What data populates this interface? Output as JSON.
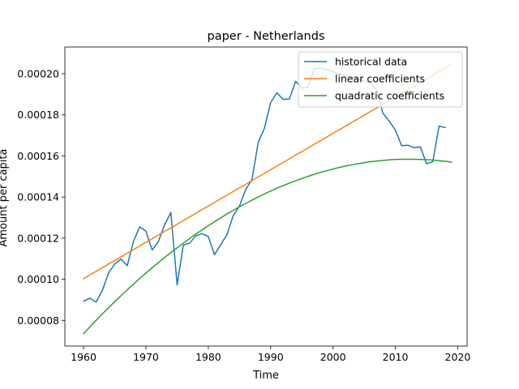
{
  "chart_data": {
    "type": "line",
    "title": "paper - Netherlands",
    "xlabel": "Time",
    "ylabel": "Amount per capita",
    "xlim": [
      1957,
      2021.5
    ],
    "ylim": [
      6.75e-05,
      0.000213
    ],
    "x_ticks": [
      1960,
      1970,
      1980,
      1990,
      2000,
      2010,
      2020
    ],
    "x_tick_labels": [
      "1960",
      "1970",
      "1980",
      "1990",
      "2000",
      "2010",
      "2020"
    ],
    "y_ticks": [
      8e-05,
      0.0001,
      0.00012,
      0.00014,
      0.00016,
      0.00018,
      0.0002
    ],
    "y_tick_labels": [
      "0.00008",
      "0.00010",
      "0.00012",
      "0.00014",
      "0.00016",
      "0.00018",
      "0.00020"
    ],
    "legend_position": "top-right",
    "grid": false,
    "x": [
      1960,
      1961,
      1962,
      1963,
      1964,
      1965,
      1966,
      1967,
      1968,
      1969,
      1970,
      1971,
      1972,
      1973,
      1974,
      1975,
      1976,
      1977,
      1978,
      1979,
      1980,
      1981,
      1982,
      1983,
      1984,
      1985,
      1986,
      1987,
      1988,
      1989,
      1990,
      1991,
      1992,
      1993,
      1994,
      1995,
      1996,
      1997,
      1998,
      1999,
      2000,
      2001,
      2002,
      2003,
      2004,
      2005,
      2006,
      2007,
      2008,
      2009,
      2010,
      2011,
      2012,
      2013,
      2014,
      2015,
      2016,
      2017,
      2018,
      2019
    ],
    "series": [
      {
        "name": "historical data",
        "color": "#1f77b4",
        "values": [
          8.93e-05,
          9.08e-05,
          8.89e-05,
          9.45e-05,
          0.000103,
          0.0001075,
          0.0001098,
          0.0001066,
          0.0001184,
          0.0001255,
          0.0001234,
          0.0001142,
          0.0001184,
          0.0001265,
          0.0001325,
          9.73e-05,
          0.0001167,
          0.0001176,
          0.0001211,
          0.0001222,
          0.0001208,
          0.0001119,
          0.0001169,
          0.0001218,
          0.000131,
          0.0001356,
          0.0001437,
          0.0001485,
          0.0001665,
          0.0001735,
          0.000186,
          0.0001907,
          0.0001875,
          0.0001877,
          0.0001963,
          0.000193,
          0.0001935,
          0.0002025,
          0.0002027,
          0.0002018,
          0.000201,
          0.0002,
          0.000199,
          0.0001985,
          0.0001975,
          0.0001965,
          0.0001955,
          0.000192,
          0.0001808,
          0.000177,
          0.0001725,
          0.000165,
          0.0001652,
          0.000164,
          0.0001644,
          0.0001562,
          0.0001572,
          0.0001745,
          0.0001738,
          null
        ]
      },
      {
        "name": "linear coefficients",
        "color": "#ff7f0e",
        "values": [
          0.0001003,
          0.0001021,
          0.0001038,
          0.0001056,
          0.0001074,
          0.0001091,
          0.0001109,
          0.0001127,
          0.0001144,
          0.0001162,
          0.000118,
          0.0001197,
          0.0001215,
          0.0001233,
          0.000125,
          0.0001268,
          0.0001286,
          0.0001303,
          0.0001321,
          0.0001339,
          0.0001356,
          0.0001374,
          0.0001392,
          0.0001409,
          0.0001427,
          0.0001445,
          0.0001462,
          0.000148,
          0.0001498,
          0.0001515,
          0.0001533,
          0.0001551,
          0.0001568,
          0.0001586,
          0.0001604,
          0.0001621,
          0.0001639,
          0.0001657,
          0.0001674,
          0.0001692,
          0.000171,
          0.0001727,
          0.0001745,
          0.0001763,
          0.000178,
          0.0001798,
          0.0001816,
          0.0001833,
          0.0001851,
          0.0001869,
          0.0001886,
          0.0001904,
          0.0001922,
          0.0001939,
          0.0001957,
          0.0001975,
          0.0001992,
          0.000201,
          0.0002028,
          0.0002045
        ]
      },
      {
        "name": "quadratic coefficients",
        "color": "#2ca02c",
        "values": [
          7.35e-05,
          7.68e-05,
          8e-05,
          8.31e-05,
          8.61e-05,
          8.91e-05,
          9.2e-05,
          9.49e-05,
          9.76e-05,
          0.0001004,
          0.000103,
          0.0001056,
          0.0001081,
          0.0001106,
          0.000113,
          0.0001153,
          0.0001176,
          0.0001198,
          0.000122,
          0.000124,
          0.0001261,
          0.000128,
          0.0001299,
          0.0001318,
          0.0001335,
          0.0001353,
          0.0001369,
          0.0001385,
          0.00014,
          0.0001415,
          0.0001429,
          0.0001443,
          0.0001455,
          0.0001468,
          0.0001479,
          0.000149,
          0.0001501,
          0.0001511,
          0.000152,
          0.0001528,
          0.0001536,
          0.0001544,
          0.0001551,
          0.0001557,
          0.0001562,
          0.0001567,
          0.0001572,
          0.0001575,
          0.0001578,
          0.0001581,
          0.0001583,
          0.0001584,
          0.0001584,
          0.0001584,
          0.0001583,
          0.0001582,
          0.000158,
          0.0001577,
          0.0001574,
          0.000157
        ]
      }
    ]
  }
}
